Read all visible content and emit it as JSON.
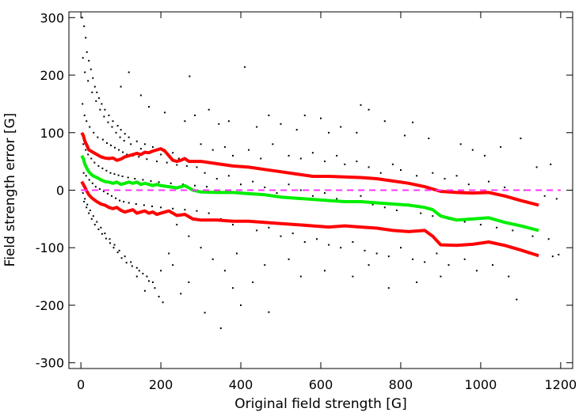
{
  "chart_data": {
    "type": "scatter",
    "title": "",
    "xlabel": "Original field strength [G]",
    "ylabel": "Field strength error [G]",
    "xlim": [
      -30,
      1230
    ],
    "ylim": [
      -310,
      310
    ],
    "xticks": [
      0,
      200,
      400,
      600,
      800,
      1000,
      1200
    ],
    "yticks": [
      -300,
      -200,
      -100,
      0,
      100,
      200,
      300
    ],
    "grid": false,
    "legend": "none",
    "scatter_points": [
      [
        3,
        300
      ],
      [
        8,
        285
      ],
      [
        12,
        265
      ],
      [
        15,
        240
      ],
      [
        20,
        225
      ],
      [
        25,
        210
      ],
      [
        30,
        195
      ],
      [
        35,
        180
      ],
      [
        40,
        170
      ],
      [
        45,
        160
      ],
      [
        52,
        150
      ],
      [
        60,
        140
      ],
      [
        70,
        130
      ],
      [
        80,
        120
      ],
      [
        92,
        112
      ],
      [
        100,
        105
      ],
      [
        110,
        98
      ],
      [
        120,
        92
      ],
      [
        140,
        85
      ],
      [
        160,
        80
      ],
      [
        180,
        75
      ],
      [
        210,
        70
      ],
      [
        230,
        65
      ],
      [
        5,
        230
      ],
      [
        10,
        205
      ],
      [
        18,
        190
      ],
      [
        28,
        170
      ],
      [
        38,
        155
      ],
      [
        48,
        140
      ],
      [
        58,
        128
      ],
      [
        68,
        118
      ],
      [
        78,
        110
      ],
      [
        88,
        100
      ],
      [
        98,
        92
      ],
      [
        108,
        86
      ],
      [
        125,
        80
      ],
      [
        150,
        72
      ],
      [
        175,
        68
      ],
      [
        200,
        62
      ],
      [
        220,
        58
      ],
      [
        245,
        55
      ],
      [
        4,
        150
      ],
      [
        9,
        130
      ],
      [
        14,
        120
      ],
      [
        22,
        110
      ],
      [
        32,
        100
      ],
      [
        42,
        92
      ],
      [
        55,
        88
      ],
      [
        65,
        82
      ],
      [
        75,
        78
      ],
      [
        85,
        74
      ],
      [
        95,
        70
      ],
      [
        105,
        66
      ],
      [
        115,
        62
      ],
      [
        130,
        60
      ],
      [
        145,
        58
      ],
      [
        165,
        54
      ],
      [
        190,
        50
      ],
      [
        215,
        48
      ],
      [
        240,
        44
      ],
      [
        265,
        42
      ],
      [
        290,
        40
      ],
      [
        6,
        80
      ],
      [
        12,
        70
      ],
      [
        18,
        62
      ],
      [
        26,
        55
      ],
      [
        34,
        48
      ],
      [
        44,
        42
      ],
      [
        54,
        38
      ],
      [
        64,
        34
      ],
      [
        74,
        30
      ],
      [
        84,
        28
      ],
      [
        94,
        26
      ],
      [
        104,
        24
      ],
      [
        118,
        22
      ],
      [
        135,
        20
      ],
      [
        155,
        18
      ],
      [
        175,
        16
      ],
      [
        195,
        14
      ],
      [
        225,
        12
      ],
      [
        255,
        10
      ],
      [
        285,
        8
      ],
      [
        315,
        6
      ],
      [
        7,
        30
      ],
      [
        13,
        25
      ],
      [
        21,
        18
      ],
      [
        29,
        12
      ],
      [
        37,
        6
      ],
      [
        47,
        2
      ],
      [
        57,
        -2
      ],
      [
        67,
        -6
      ],
      [
        77,
        -10
      ],
      [
        87,
        -14
      ],
      [
        97,
        -18
      ],
      [
        107,
        -20
      ],
      [
        120,
        -22
      ],
      [
        138,
        -24
      ],
      [
        158,
        -26
      ],
      [
        178,
        -28
      ],
      [
        200,
        -30
      ],
      [
        230,
        -32
      ],
      [
        260,
        -34
      ],
      [
        290,
        -36
      ],
      [
        5,
        -5
      ],
      [
        10,
        -15
      ],
      [
        16,
        -25
      ],
      [
        23,
        -35
      ],
      [
        31,
        -45
      ],
      [
        40,
        -55
      ],
      [
        50,
        -65
      ],
      [
        60,
        -75
      ],
      [
        72,
        -85
      ],
      [
        84,
        -95
      ],
      [
        96,
        -105
      ],
      [
        110,
        -115
      ],
      [
        125,
        -125
      ],
      [
        140,
        -135
      ],
      [
        155,
        -145
      ],
      [
        170,
        -158
      ],
      [
        185,
        -170
      ],
      [
        195,
        -185
      ],
      [
        205,
        -195
      ],
      [
        8,
        -20
      ],
      [
        14,
        -30
      ],
      [
        20,
        -40
      ],
      [
        27,
        -50
      ],
      [
        35,
        -60
      ],
      [
        44,
        -68
      ],
      [
        53,
        -76
      ],
      [
        63,
        -84
      ],
      [
        73,
        -92
      ],
      [
        82,
        -100
      ],
      [
        92,
        -108
      ],
      [
        102,
        -118
      ],
      [
        114,
        -126
      ],
      [
        128,
        -132
      ],
      [
        146,
        -140
      ],
      [
        165,
        -150
      ],
      [
        120,
        205
      ],
      [
        100,
        180
      ],
      [
        150,
        165
      ],
      [
        170,
        145
      ],
      [
        210,
        135
      ],
      [
        260,
        120
      ],
      [
        272,
        198
      ],
      [
        285,
        130
      ],
      [
        320,
        140
      ],
      [
        345,
        115
      ],
      [
        370,
        120
      ],
      [
        410,
        214
      ],
      [
        440,
        110
      ],
      [
        470,
        130
      ],
      [
        500,
        115
      ],
      [
        540,
        105
      ],
      [
        560,
        130
      ],
      [
        600,
        125
      ],
      [
        620,
        100
      ],
      [
        650,
        110
      ],
      [
        690,
        100
      ],
      [
        700,
        148
      ],
      [
        720,
        140
      ],
      [
        760,
        120
      ],
      [
        810,
        95
      ],
      [
        830,
        118
      ],
      [
        870,
        90
      ],
      [
        950,
        80
      ],
      [
        980,
        70
      ],
      [
        1010,
        60
      ],
      [
        1050,
        75
      ],
      [
        1100,
        90
      ],
      [
        1140,
        40
      ],
      [
        1175,
        45
      ],
      [
        300,
        80
      ],
      [
        330,
        70
      ],
      [
        360,
        75
      ],
      [
        380,
        60
      ],
      [
        420,
        70
      ],
      [
        450,
        55
      ],
      [
        480,
        80
      ],
      [
        520,
        60
      ],
      [
        550,
        55
      ],
      [
        580,
        65
      ],
      [
        610,
        50
      ],
      [
        640,
        60
      ],
      [
        660,
        45
      ],
      [
        690,
        50
      ],
      [
        720,
        40
      ],
      [
        750,
        30
      ],
      [
        780,
        45
      ],
      [
        800,
        35
      ],
      [
        840,
        25
      ],
      [
        880,
        30
      ],
      [
        910,
        20
      ],
      [
        940,
        25
      ],
      [
        970,
        10
      ],
      [
        1020,
        15
      ],
      [
        1060,
        5
      ],
      [
        1110,
        0
      ],
      [
        1160,
        -10
      ],
      [
        1190,
        -15
      ],
      [
        310,
        30
      ],
      [
        340,
        20
      ],
      [
        370,
        25
      ],
      [
        400,
        10
      ],
      [
        430,
        15
      ],
      [
        460,
        5
      ],
      [
        490,
        -5
      ],
      [
        520,
        10
      ],
      [
        550,
        0
      ],
      [
        580,
        -10
      ],
      [
        610,
        -5
      ],
      [
        640,
        -15
      ],
      [
        670,
        -20
      ],
      [
        700,
        -10
      ],
      [
        730,
        -25
      ],
      [
        760,
        -30
      ],
      [
        790,
        -35
      ],
      [
        820,
        -25
      ],
      [
        850,
        -40
      ],
      [
        880,
        -45
      ],
      [
        920,
        -50
      ],
      [
        960,
        -55
      ],
      [
        1000,
        -60
      ],
      [
        1040,
        -65
      ],
      [
        1080,
        -70
      ],
      [
        1130,
        -80
      ],
      [
        1170,
        -85
      ],
      [
        1195,
        -112
      ],
      [
        320,
        -40
      ],
      [
        350,
        -50
      ],
      [
        380,
        -60
      ],
      [
        410,
        -55
      ],
      [
        440,
        -70
      ],
      [
        470,
        -65
      ],
      [
        500,
        -80
      ],
      [
        530,
        -75
      ],
      [
        560,
        -90
      ],
      [
        590,
        -85
      ],
      [
        620,
        -95
      ],
      [
        650,
        -100
      ],
      [
        680,
        -90
      ],
      [
        710,
        -105
      ],
      [
        740,
        -110
      ],
      [
        770,
        -115
      ],
      [
        800,
        -100
      ],
      [
        830,
        -120
      ],
      [
        860,
        -125
      ],
      [
        890,
        -110
      ],
      [
        920,
        -130
      ],
      [
        960,
        -120
      ],
      [
        990,
        -140
      ],
      [
        1030,
        -130
      ],
      [
        1070,
        -150
      ],
      [
        1090,
        -190
      ],
      [
        1120,
        -110
      ],
      [
        1180,
        -115
      ],
      [
        240,
        -60
      ],
      [
        270,
        -80
      ],
      [
        300,
        -100
      ],
      [
        330,
        -120
      ],
      [
        360,
        -140
      ],
      [
        390,
        -110
      ],
      [
        430,
        -160
      ],
      [
        460,
        -130
      ],
      [
        470,
        -212
      ],
      [
        520,
        -120
      ],
      [
        550,
        -150
      ],
      [
        610,
        -140
      ],
      [
        680,
        -150
      ],
      [
        720,
        -130
      ],
      [
        770,
        -170
      ],
      [
        840,
        -160
      ],
      [
        900,
        -150
      ],
      [
        220,
        -110
      ],
      [
        250,
        -180
      ],
      [
        270,
        -160
      ],
      [
        310,
        -213
      ],
      [
        350,
        -240
      ],
      [
        380,
        -170
      ],
      [
        400,
        -200
      ],
      [
        160,
        -175
      ],
      [
        180,
        -160
      ],
      [
        140,
        -150
      ],
      [
        200,
        -140
      ],
      [
        230,
        -130
      ]
    ],
    "series": [
      {
        "type": "line",
        "color": "#ff0000",
        "x": [
          2,
          6,
          10,
          15,
          20,
          25,
          30,
          40,
          50,
          60,
          70,
          80,
          90,
          100,
          110,
          120,
          130,
          140,
          150,
          160,
          170,
          180,
          190,
          200,
          210,
          220,
          230,
          240,
          250,
          260,
          270,
          300,
          340,
          380,
          420,
          460,
          500,
          540,
          580,
          620,
          660,
          700,
          740,
          780,
          820,
          860,
          900,
          940,
          980,
          1020,
          1060,
          1100,
          1145
        ],
        "y": [
          100,
          95,
          85,
          78,
          70,
          68,
          66,
          62,
          58,
          56,
          55,
          56,
          52,
          54,
          58,
          60,
          62,
          64,
          62,
          66,
          65,
          68,
          70,
          72,
          68,
          60,
          52,
          50,
          52,
          55,
          50,
          50,
          46,
          42,
          40,
          36,
          32,
          28,
          24,
          24,
          23,
          22,
          20,
          16,
          12,
          6,
          -2,
          -4,
          -5,
          -4,
          -10,
          -18,
          -26
        ]
      },
      {
        "type": "line",
        "color": "#00ee00",
        "x": [
          2,
          6,
          10,
          15,
          20,
          25,
          30,
          40,
          50,
          60,
          70,
          80,
          90,
          100,
          110,
          120,
          130,
          140,
          150,
          160,
          170,
          180,
          190,
          200,
          220,
          240,
          260,
          280,
          300,
          340,
          380,
          420,
          460,
          500,
          540,
          580,
          620,
          660,
          700,
          740,
          780,
          820,
          860,
          880,
          900,
          940,
          980,
          1020,
          1060,
          1100,
          1145
        ],
        "y": [
          60,
          55,
          45,
          38,
          32,
          28,
          25,
          22,
          18,
          15,
          14,
          12,
          14,
          10,
          12,
          14,
          12,
          14,
          10,
          12,
          10,
          8,
          10,
          8,
          6,
          4,
          8,
          0,
          -3,
          -4,
          -4,
          -6,
          -8,
          -12,
          -14,
          -16,
          -18,
          -20,
          -20,
          -22,
          -24,
          -26,
          -30,
          -34,
          -45,
          -52,
          -50,
          -48,
          -56,
          -62,
          -70
        ]
      },
      {
        "type": "line",
        "color": "#ff0000",
        "x": [
          2,
          6,
          10,
          15,
          20,
          25,
          30,
          40,
          50,
          60,
          70,
          80,
          90,
          100,
          110,
          120,
          130,
          140,
          150,
          160,
          170,
          180,
          190,
          200,
          220,
          240,
          260,
          280,
          300,
          340,
          380,
          420,
          460,
          500,
          540,
          580,
          620,
          660,
          700,
          740,
          780,
          820,
          860,
          880,
          900,
          940,
          980,
          1020,
          1060,
          1100,
          1145
        ],
        "y": [
          15,
          10,
          5,
          -2,
          -8,
          -12,
          -15,
          -20,
          -24,
          -26,
          -30,
          -32,
          -30,
          -35,
          -38,
          -36,
          -34,
          -40,
          -38,
          -36,
          -40,
          -38,
          -42,
          -40,
          -36,
          -44,
          -42,
          -50,
          -52,
          -52,
          -54,
          -54,
          -56,
          -58,
          -60,
          -62,
          -64,
          -62,
          -64,
          -66,
          -70,
          -72,
          -70,
          -80,
          -95,
          -96,
          -94,
          -90,
          -96,
          -104,
          -114
        ]
      },
      {
        "type": "dashed-line",
        "color": "#ff33ff",
        "x": [
          0,
          1200
        ],
        "y": [
          0,
          0
        ]
      }
    ]
  }
}
